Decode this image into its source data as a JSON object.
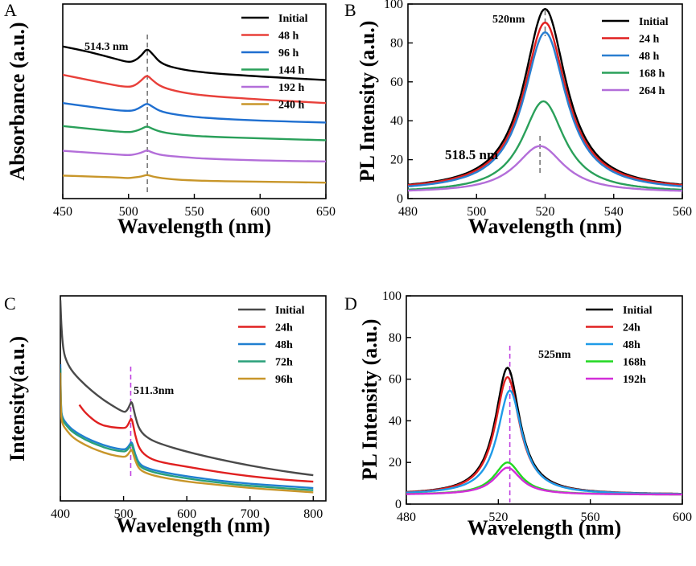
{
  "chart_data": [
    {
      "panel": "A",
      "type": "line",
      "title": "",
      "xlabel": "Wavelength (nm)",
      "ylabel": "Absorbance (a.u.)",
      "xlim": [
        450,
        650
      ],
      "xticks": [
        450,
        500,
        550,
        600,
        650
      ],
      "yticks": [],
      "peak_marker": 514.3,
      "annotation": "514.3 nm",
      "legend": "top-right",
      "series": [
        {
          "name": "Initial",
          "color": "#000000",
          "x": [
            450,
            470,
            490,
            500,
            505,
            510,
            514,
            518,
            525,
            540,
            560,
            600,
            650
          ],
          "y": [
            8.6,
            8.3,
            7.9,
            7.7,
            7.8,
            8.1,
            8.5,
            8.2,
            7.6,
            7.3,
            7.1,
            6.9,
            6.7
          ]
        },
        {
          "name": "48 h",
          "color": "#e8403a",
          "x": [
            450,
            470,
            490,
            500,
            505,
            510,
            514,
            518,
            525,
            540,
            560,
            600,
            650
          ],
          "y": [
            7.0,
            6.7,
            6.4,
            6.3,
            6.4,
            6.7,
            7.0,
            6.7,
            6.3,
            6.0,
            5.8,
            5.6,
            5.4
          ]
        },
        {
          "name": "96 h",
          "color": "#1f6fd0",
          "x": [
            450,
            470,
            490,
            500,
            505,
            510,
            514,
            518,
            525,
            540,
            560,
            600,
            650
          ],
          "y": [
            5.4,
            5.2,
            5.0,
            4.95,
            5.0,
            5.2,
            5.4,
            5.2,
            4.9,
            4.7,
            4.55,
            4.4,
            4.3
          ]
        },
        {
          "name": "144 h",
          "color": "#2aa05a",
          "x": [
            450,
            470,
            490,
            500,
            505,
            510,
            514,
            518,
            525,
            540,
            560,
            600,
            650
          ],
          "y": [
            4.1,
            3.95,
            3.8,
            3.75,
            3.8,
            3.95,
            4.1,
            3.95,
            3.75,
            3.6,
            3.5,
            3.4,
            3.3
          ]
        },
        {
          "name": "192 h",
          "color": "#b36ed9",
          "x": [
            450,
            470,
            490,
            500,
            505,
            510,
            514,
            518,
            525,
            540,
            560,
            600,
            650
          ],
          "y": [
            2.7,
            2.6,
            2.5,
            2.45,
            2.5,
            2.6,
            2.75,
            2.6,
            2.45,
            2.35,
            2.25,
            2.15,
            2.1
          ]
        },
        {
          "name": "240 h",
          "color": "#c8962a",
          "x": [
            450,
            470,
            490,
            500,
            505,
            510,
            514,
            518,
            525,
            540,
            560,
            600,
            650
          ],
          "y": [
            1.3,
            1.25,
            1.2,
            1.15,
            1.2,
            1.25,
            1.35,
            1.25,
            1.15,
            1.05,
            1.0,
            0.95,
            0.9
          ]
        }
      ]
    },
    {
      "panel": "B",
      "type": "line",
      "title": "",
      "xlabel": "Wavelength (nm)",
      "ylabel": "PL Intensity (a.u.)",
      "xlim": [
        480,
        560
      ],
      "ylim": [
        0,
        100
      ],
      "xticks": [
        480,
        500,
        520,
        540,
        560
      ],
      "yticks": [
        0,
        20,
        40,
        60,
        80,
        100
      ],
      "peak_marker": 520,
      "peak_marker_2": 518.5,
      "annotation": "520nm",
      "annotation_2": "518.5 nm",
      "annotation_2_color": "#b36ed9",
      "legend": "top-right",
      "series": [
        {
          "name": "Initial",
          "color": "#000000",
          "center": 520,
          "amplitude": 93.5,
          "width": 7.5,
          "baseline": 4
        },
        {
          "name": "24 h",
          "color": "#e02020",
          "center": 520,
          "amplitude": 86.5,
          "width": 7.5,
          "baseline": 4
        },
        {
          "name": "48 h",
          "color": "#2a7fd0",
          "center": 520,
          "amplitude": 82,
          "width": 7.5,
          "baseline": 3.5
        },
        {
          "name": "168 h",
          "color": "#2aa05a",
          "center": 519.5,
          "amplitude": 47,
          "width": 7.5,
          "baseline": 3
        },
        {
          "name": "264 h",
          "color": "#b36ed9",
          "center": 518.5,
          "amplitude": 24,
          "width": 8.5,
          "baseline": 3
        }
      ]
    },
    {
      "panel": "C",
      "type": "line",
      "title": "",
      "xlabel": "Wavelength (nm)",
      "ylabel": "Intensity(a.u.)",
      "xlim": [
        400,
        820
      ],
      "xticks": [
        400,
        500,
        600,
        700,
        800
      ],
      "yticks": [],
      "peak_marker": 511.3,
      "annotation": "511.3nm",
      "legend": "top-right",
      "series": [
        {
          "name": "Initial",
          "color": "#4a4a4a",
          "x": [
            400,
            402,
            405,
            410,
            420,
            440,
            460,
            480,
            500,
            505,
            510,
            513,
            518,
            525,
            540,
            560,
            600,
            650,
            700,
            750,
            800
          ],
          "y": [
            10,
            8.5,
            7.6,
            7.1,
            6.6,
            6.0,
            5.5,
            5.1,
            4.75,
            4.8,
            5.1,
            5.3,
            4.6,
            3.9,
            3.5,
            3.25,
            2.9,
            2.55,
            2.25,
            2.0,
            1.8
          ]
        },
        {
          "name": "24h",
          "color": "#e02020",
          "x": [
            430,
            440,
            460,
            480,
            500,
            505,
            510,
            513,
            518,
            525,
            540,
            560,
            600,
            650,
            700,
            750,
            800
          ],
          "y": [
            5.1,
            4.7,
            4.2,
            4.05,
            4.0,
            4.05,
            4.35,
            4.5,
            3.7,
            3.0,
            2.6,
            2.4,
            2.2,
            1.95,
            1.75,
            1.6,
            1.5
          ]
        },
        {
          "name": "48h",
          "color": "#1f7fd0",
          "x": [
            400,
            401,
            403,
            410,
            420,
            440,
            460,
            480,
            500,
            505,
            510,
            513,
            518,
            525,
            540,
            560,
            600,
            650,
            700,
            750,
            800
          ],
          "y": [
            7.0,
            4.9,
            4.5,
            4.2,
            3.9,
            3.55,
            3.3,
            3.1,
            3.0,
            3.05,
            3.25,
            3.4,
            2.8,
            2.3,
            2.1,
            1.95,
            1.75,
            1.55,
            1.4,
            1.3,
            1.2
          ]
        },
        {
          "name": "72h",
          "color": "#2aa07a",
          "x": [
            400,
            401,
            403,
            410,
            420,
            440,
            460,
            480,
            500,
            505,
            510,
            513,
            518,
            525,
            540,
            560,
            600,
            650,
            700,
            750,
            800
          ],
          "y": [
            6.8,
            4.8,
            4.4,
            4.1,
            3.8,
            3.45,
            3.2,
            3.0,
            2.9,
            2.95,
            3.15,
            3.3,
            2.7,
            2.2,
            2.0,
            1.85,
            1.65,
            1.45,
            1.3,
            1.2,
            1.1
          ]
        },
        {
          "name": "96h",
          "color": "#c8962a",
          "x": [
            400,
            401,
            403,
            410,
            420,
            440,
            460,
            480,
            500,
            505,
            510,
            513,
            518,
            525,
            540,
            560,
            600,
            650,
            700,
            750,
            800
          ],
          "y": [
            6.6,
            4.6,
            4.2,
            3.9,
            3.55,
            3.2,
            2.95,
            2.75,
            2.65,
            2.7,
            2.9,
            3.05,
            2.5,
            2.05,
            1.85,
            1.7,
            1.5,
            1.35,
            1.2,
            1.1,
            1.0
          ]
        }
      ]
    },
    {
      "panel": "D",
      "type": "line",
      "title": "",
      "xlabel": "Wavelength (nm)",
      "ylabel": "PL Intensity (a.u.)",
      "xlim": [
        480,
        600
      ],
      "ylim": [
        0,
        100
      ],
      "xticks": [
        480,
        520,
        560,
        600
      ],
      "yticks": [
        0,
        20,
        40,
        60,
        80,
        100
      ],
      "peak_marker": 525,
      "annotation": "525nm",
      "legend": "top-right",
      "series": [
        {
          "name": "Initial",
          "color": "#000000",
          "center": 524,
          "amplitude": 61,
          "width": 6.5,
          "baseline": 4.5
        },
        {
          "name": "24h",
          "color": "#e02020",
          "center": 524,
          "amplitude": 56.5,
          "width": 6.5,
          "baseline": 4.5
        },
        {
          "name": "48h",
          "color": "#1e9be8",
          "center": 525,
          "amplitude": 50,
          "width": 6.5,
          "baseline": 4.5
        },
        {
          "name": "168h",
          "color": "#22d822",
          "center": 524,
          "amplitude": 15.5,
          "width": 7,
          "baseline": 4.5
        },
        {
          "name": "192h",
          "color": "#d22ed8",
          "center": 524,
          "amplitude": 13,
          "width": 7,
          "baseline": 4.5
        }
      ]
    }
  ]
}
